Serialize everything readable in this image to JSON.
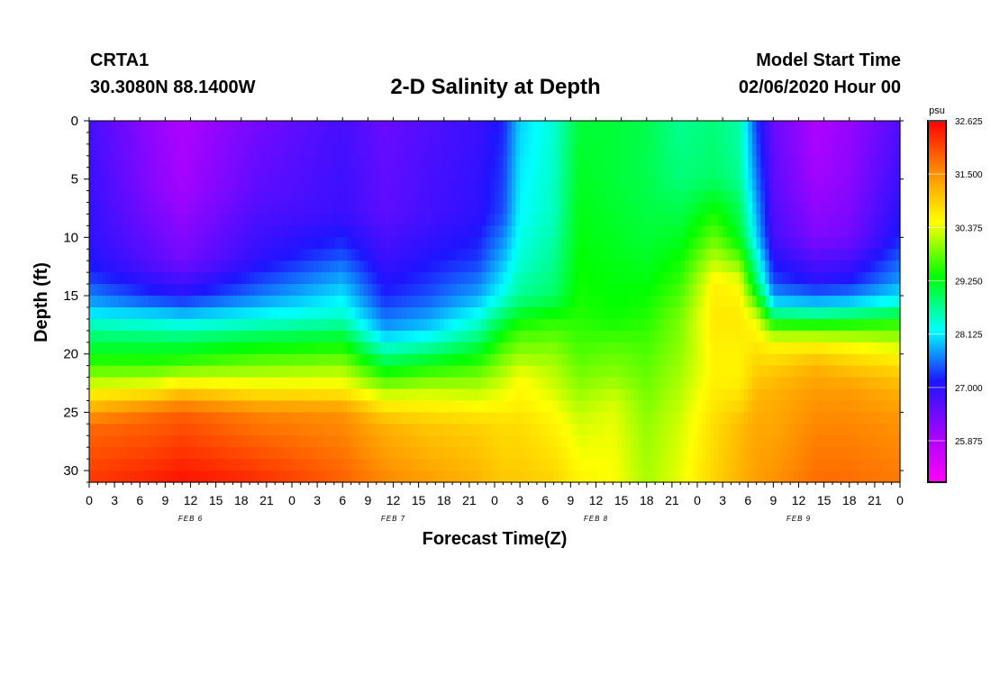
{
  "header": {
    "station_id": "CRTA1",
    "station_coords": "30.3080N 88.1400W",
    "title": "2-D Salinity at Depth",
    "model_start_label": "Model Start Time",
    "model_start_value": "02/06/2020 Hour 00"
  },
  "chart_data": {
    "type": "heatmap",
    "title": "2-D Salinity at Depth",
    "xlabel": "Forecast Time(Z)",
    "ylabel": "Depth (ft)",
    "x_tick_labels": [
      "0",
      "3",
      "6",
      "9",
      "12",
      "15",
      "18",
      "21",
      "0",
      "3",
      "6",
      "9",
      "12",
      "15",
      "18",
      "21",
      "0",
      "3",
      "6",
      "9",
      "12",
      "15",
      "18",
      "21",
      "0",
      "3",
      "6",
      "9",
      "12",
      "15",
      "18",
      "21",
      "0"
    ],
    "date_labels": [
      {
        "label": "FEB 6",
        "hour": 12
      },
      {
        "label": "FEB 7",
        "hour": 36
      },
      {
        "label": "FEB 8",
        "hour": 60
      },
      {
        "label": "FEB 9",
        "hour": 84
      }
    ],
    "xlim_hours": [
      0,
      96
    ],
    "y_ticks": [
      "0",
      "5",
      "10",
      "15",
      "20",
      "25",
      "30"
    ],
    "ylim_ft": [
      0,
      31
    ],
    "colorbar": {
      "unit": "psu",
      "min": 25.0,
      "max": 32.625,
      "tick_labels": [
        "32.625",
        "31.500",
        "30.375",
        "29.250",
        "28.125",
        "27.000",
        "25.875"
      ]
    },
    "profiles_psu_by_hour": [
      {
        "hour": 0,
        "depths": [
          0,
          10,
          13,
          16,
          18,
          20,
          22,
          24,
          26,
          31
        ],
        "salinity": [
          26.8,
          27.0,
          27.2,
          27.9,
          28.7,
          29.3,
          30.0,
          30.9,
          31.8,
          32.2
        ]
      },
      {
        "hour": 8,
        "depths": [
          0,
          6,
          12,
          15,
          17,
          19,
          21,
          23,
          25,
          31
        ],
        "salinity": [
          26.1,
          26.2,
          26.6,
          27.2,
          28.2,
          29.0,
          29.6,
          30.6,
          31.8,
          32.4
        ]
      },
      {
        "hour": 11,
        "depths": [
          0,
          6,
          12,
          15,
          17,
          19,
          21,
          23,
          25,
          31
        ],
        "salinity": [
          25.9,
          26.0,
          26.4,
          27.1,
          28.1,
          29.0,
          29.7,
          30.9,
          31.9,
          32.5
        ]
      },
      {
        "hour": 20,
        "depths": [
          0,
          6,
          12,
          15,
          17,
          19,
          21,
          23,
          25,
          31
        ],
        "salinity": [
          26.4,
          26.6,
          27.0,
          27.6,
          28.3,
          29.2,
          29.9,
          30.6,
          31.6,
          32.3
        ]
      },
      {
        "hour": 30,
        "depths": [
          0,
          8,
          11,
          14,
          17,
          19,
          21,
          23,
          25,
          31
        ],
        "salinity": [
          26.8,
          26.9,
          27.3,
          27.9,
          28.5,
          29.3,
          30.0,
          30.6,
          31.5,
          31.9
        ]
      },
      {
        "hour": 35,
        "depths": [
          0,
          8,
          12,
          15,
          18,
          20,
          22,
          24,
          26,
          31
        ],
        "salinity": [
          26.5,
          26.6,
          26.9,
          27.2,
          27.8,
          28.7,
          29.6,
          30.5,
          31.2,
          31.6
        ]
      },
      {
        "hour": 40,
        "depths": [
          0,
          8,
          12,
          15,
          18,
          20,
          22,
          24,
          26,
          31
        ],
        "salinity": [
          26.7,
          26.8,
          27.1,
          27.4,
          28.0,
          28.9,
          29.8,
          30.5,
          31.0,
          31.4
        ]
      },
      {
        "hour": 46,
        "depths": [
          0,
          8,
          12,
          15,
          18,
          20,
          22,
          24,
          26,
          31
        ],
        "salinity": [
          26.9,
          27.0,
          27.3,
          27.8,
          28.6,
          29.3,
          29.9,
          30.4,
          30.9,
          31.2
        ]
      },
      {
        "hour": 49,
        "depths": [
          0,
          8,
          12,
          15,
          18,
          20,
          22,
          24,
          26,
          31
        ],
        "salinity": [
          27.2,
          27.4,
          27.9,
          28.3,
          29.3,
          29.8,
          30.2,
          30.5,
          30.8,
          31.0
        ]
      },
      {
        "hour": 51,
        "depths": [
          0,
          8,
          12,
          15,
          18,
          20,
          22,
          24,
          26,
          31
        ],
        "salinity": [
          28.0,
          28.2,
          28.4,
          28.7,
          29.6,
          30.0,
          30.5,
          30.6,
          30.8,
          31.0
        ]
      },
      {
        "hour": 55,
        "depths": [
          0,
          8,
          12,
          15,
          17,
          20,
          22,
          24,
          26,
          31
        ],
        "salinity": [
          28.4,
          28.5,
          28.7,
          28.9,
          29.5,
          30.0,
          30.2,
          30.4,
          30.6,
          30.9
        ]
      },
      {
        "hour": 58,
        "depths": [
          0,
          5,
          10,
          14,
          17,
          20,
          22,
          24,
          26,
          31
        ],
        "salinity": [
          29.1,
          29.2,
          29.3,
          29.4,
          29.5,
          29.7,
          29.9,
          30.1,
          30.3,
          30.6
        ]
      },
      {
        "hour": 62,
        "depths": [
          0,
          5,
          10,
          14,
          17,
          20,
          22,
          24,
          26,
          31
        ],
        "salinity": [
          29.1,
          29.1,
          29.2,
          29.3,
          29.4,
          29.8,
          30.0,
          30.3,
          30.4,
          30.5
        ]
      },
      {
        "hour": 66,
        "depths": [
          0,
          5,
          10,
          14,
          17,
          20,
          22,
          24,
          26,
          31
        ],
        "salinity": [
          29.0,
          29.0,
          29.1,
          29.3,
          29.5,
          29.7,
          29.8,
          29.9,
          30.0,
          30.1
        ]
      },
      {
        "hour": 70,
        "depths": [
          0,
          5,
          10,
          14,
          17,
          20,
          22,
          24,
          26,
          31
        ],
        "salinity": [
          28.7,
          28.8,
          29.2,
          29.6,
          29.9,
          30.0,
          30.1,
          30.2,
          30.3,
          30.4
        ]
      },
      {
        "hour": 74,
        "depths": [
          0,
          5,
          10,
          14,
          17,
          20,
          22,
          24,
          26,
          31
        ],
        "salinity": [
          28.8,
          28.9,
          29.8,
          30.6,
          30.7,
          30.6,
          30.6,
          30.7,
          30.8,
          30.9
        ]
      },
      {
        "hour": 77,
        "depths": [
          0,
          5,
          10,
          14,
          17,
          20,
          22,
          24,
          26,
          31
        ],
        "salinity": [
          28.6,
          28.7,
          29.2,
          30.5,
          30.7,
          30.6,
          30.6,
          30.8,
          31.1,
          31.2
        ]
      },
      {
        "hour": 79,
        "depths": [
          0,
          5,
          10,
          14,
          17,
          20,
          22,
          24,
          26,
          31
        ],
        "salinity": [
          27.3,
          27.6,
          28.0,
          28.9,
          30.4,
          30.8,
          31.0,
          31.2,
          31.3,
          31.4
        ]
      },
      {
        "hour": 81,
        "depths": [
          0,
          5,
          10,
          14,
          16,
          17,
          19,
          21,
          23,
          26,
          31
        ],
        "salinity": [
          26.5,
          26.6,
          26.8,
          27.4,
          28.2,
          29.2,
          30.5,
          30.9,
          31.2,
          31.3,
          31.5
        ]
      },
      {
        "hour": 86,
        "depths": [
          0,
          5,
          10,
          14,
          16,
          17,
          19,
          21,
          23,
          26,
          31
        ],
        "salinity": [
          25.9,
          26.0,
          26.3,
          27.1,
          28.1,
          29.1,
          30.5,
          31.2,
          31.4,
          31.6,
          31.8
        ]
      },
      {
        "hour": 90,
        "depths": [
          0,
          5,
          10,
          14,
          16,
          17,
          19,
          21,
          23,
          26,
          31
        ],
        "salinity": [
          26.1,
          26.2,
          26.4,
          27.2,
          28.2,
          29.2,
          30.4,
          31.0,
          31.4,
          31.6,
          31.8
        ]
      },
      {
        "hour": 96,
        "depths": [
          0,
          5,
          10,
          14,
          16,
          17,
          19,
          21,
          23,
          26,
          31
        ],
        "salinity": [
          26.7,
          26.9,
          27.2,
          27.8,
          28.5,
          29.4,
          30.2,
          30.8,
          31.2,
          31.5,
          31.7
        ]
      }
    ]
  }
}
